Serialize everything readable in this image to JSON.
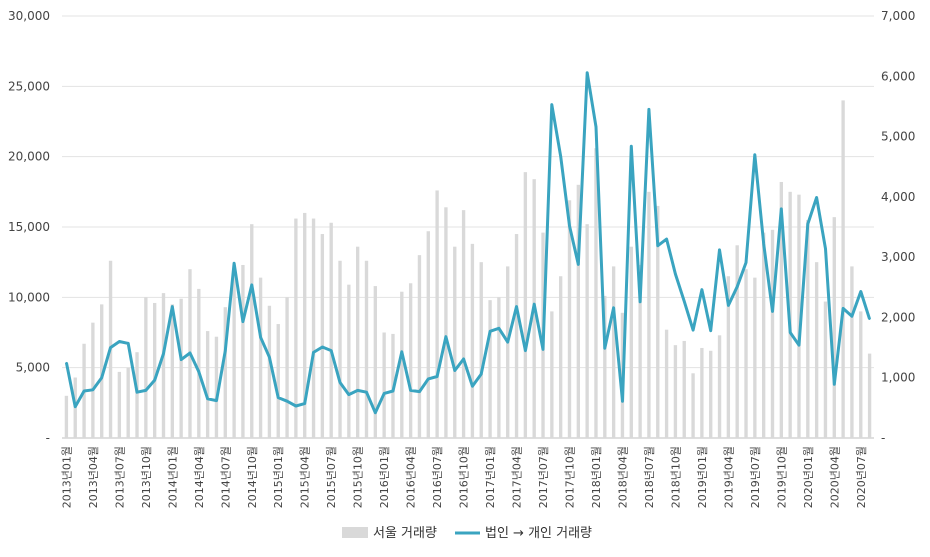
{
  "chart_data": {
    "type": "bar+line",
    "title": "",
    "xlabel": "",
    "ylabel": "",
    "categories": [
      "2013년01월",
      "2013년02월",
      "2013년03월",
      "2013년04월",
      "2013년05월",
      "2013년06월",
      "2013년07월",
      "2013년08월",
      "2013년09월",
      "2013년10월",
      "2013년11월",
      "2013년12월",
      "2014년01월",
      "2014년02월",
      "2014년03월",
      "2014년04월",
      "2014년05월",
      "2014년06월",
      "2014년07월",
      "2014년08월",
      "2014년09월",
      "2014년10월",
      "2014년11월",
      "2014년12월",
      "2015년01월",
      "2015년02월",
      "2015년03월",
      "2015년04월",
      "2015년05월",
      "2015년06월",
      "2015년07월",
      "2015년08월",
      "2015년09월",
      "2015년10월",
      "2015년11월",
      "2015년12월",
      "2016년01월",
      "2016년02월",
      "2016년03월",
      "2016년04월",
      "2016년05월",
      "2016년06월",
      "2016년07월",
      "2016년08월",
      "2016년09월",
      "2016년10월",
      "2016년11월",
      "2016년12월",
      "2017년01월",
      "2017년02월",
      "2017년03월",
      "2017년04월",
      "2017년05월",
      "2017년06월",
      "2017년07월",
      "2017년08월",
      "2017년09월",
      "2017년10월",
      "2017년11월",
      "2017년12월",
      "2018년01월",
      "2018년02월",
      "2018년03월",
      "2018년04월",
      "2018년05월",
      "2018년06월",
      "2018년07월",
      "2018년08월",
      "2018년09월",
      "2018년10월",
      "2018년11월",
      "2018년12월",
      "2019년01월",
      "2019년02월",
      "2019년03월",
      "2019년04월",
      "2019년05월",
      "2019년06월",
      "2019년07월",
      "2019년08월",
      "2019년09월",
      "2019년10월",
      "2019년11월",
      "2019년12월",
      "2020년01월",
      "2020년02월",
      "2020년03월",
      "2020년04월",
      "2020년05월",
      "2020년06월",
      "2020년07월",
      "2020년08월"
    ],
    "x_tick_labels": [
      "2013년01월",
      "2013년04월",
      "2013년07월",
      "2013년10월",
      "2014년01월",
      "2014년04월",
      "2014년07월",
      "2014년10월",
      "2015년01월",
      "2015년04월",
      "2015년07월",
      "2015년10월",
      "2016년01월",
      "2016년04월",
      "2016년07월",
      "2016년10월",
      "2017년01월",
      "2017년04월",
      "2017년07월",
      "2017년10월",
      "2018년01월",
      "2018년04월",
      "2018년07월",
      "2018년10월",
      "2019년01월",
      "2019년04월",
      "2019년07월",
      "2019년10월",
      "2020년01월",
      "2020년04월",
      "2020년07월"
    ],
    "y_left": {
      "ylim": [
        0,
        30000
      ],
      "ticks": [
        "-",
        "5,000",
        "10,000",
        "15,000",
        "20,000",
        "25,000",
        "30,000"
      ]
    },
    "y_right": {
      "ylim": [
        0,
        7000
      ],
      "ticks": [
        "-",
        "1,000",
        "2,000",
        "3,000",
        "4,000",
        "5,000",
        "6,000",
        "7,000"
      ]
    },
    "grid": true,
    "legend_position": "bottom",
    "series": [
      {
        "name": "서울 거래량",
        "type": "bar",
        "axis": "left",
        "color": "#d9d9d9",
        "values": [
          3000,
          4300,
          6700,
          8200,
          9500,
          12600,
          4700,
          5000,
          6100,
          10000,
          9600,
          10300,
          9500,
          9900,
          12000,
          10600,
          7600,
          7200,
          9300,
          11700,
          12300,
          15200,
          11400,
          9400,
          8100,
          10000,
          15600,
          16000,
          15600,
          14500,
          15300,
          12600,
          10900,
          13600,
          12600,
          10800,
          7500,
          7400,
          10400,
          11000,
          13000,
          14700,
          17600,
          16400,
          13600,
          16200,
          13800,
          12500,
          9800,
          10000,
          12200,
          14500,
          18900,
          18400,
          14600,
          9000,
          11500,
          16900,
          18000,
          15200,
          20600,
          10100,
          12200,
          8900,
          13600,
          12300,
          17500,
          16500,
          7700,
          6600,
          6900,
          4600,
          6400,
          6200,
          7300,
          11500,
          13700,
          12000,
          11400,
          14600,
          14800,
          18200,
          17500,
          17300,
          15500,
          12500,
          9700,
          15700,
          24000,
          12200,
          9000,
          6000
        ]
      },
      {
        "name": "법인 → 개인 거래량",
        "type": "line",
        "axis": "right",
        "color": "#3aa4c0",
        "values": [
          1250,
          520,
          780,
          800,
          1000,
          1500,
          1600,
          1570,
          760,
          790,
          960,
          1400,
          2180,
          1300,
          1410,
          1100,
          650,
          620,
          1450,
          2900,
          1930,
          2540,
          1670,
          1340,
          670,
          610,
          530,
          570,
          1420,
          1510,
          1450,
          920,
          720,
          790,
          760,
          420,
          740,
          780,
          1430,
          790,
          770,
          980,
          1020,
          1680,
          1120,
          1310,
          860,
          1060,
          1770,
          1820,
          1590,
          2180,
          1450,
          2220,
          1470,
          5530,
          4670,
          3520,
          2880,
          6060,
          5160,
          1490,
          2160,
          610,
          4840,
          2260,
          5450,
          3190,
          3300,
          2720,
          2270,
          1790,
          2460,
          1780,
          3120,
          2200,
          2510,
          2910,
          4700,
          3220,
          2100,
          3800,
          1750,
          1540,
          3550,
          3990,
          3140,
          890,
          2150,
          2020,
          2430,
          1970
        ]
      }
    ]
  }
}
